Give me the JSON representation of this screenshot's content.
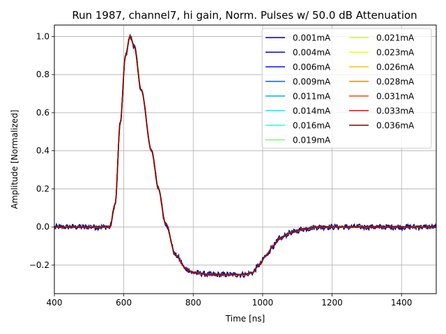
{
  "chart_data": {
    "type": "line",
    "title": "Run 1987, channel7, hi gain, Norm. Pulses w/ 50.0 dB Attenuation",
    "xlabel": "Time [ns]",
    "ylabel": "Amplitude [Normalized]",
    "xlim": [
      400,
      1500
    ],
    "ylim": [
      -0.35,
      1.06
    ],
    "xticks": [
      400,
      600,
      800,
      1000,
      1200,
      1400
    ],
    "yticks": [
      -0.2,
      0.0,
      0.2,
      0.4,
      0.6,
      0.8,
      1.0
    ],
    "ytick_labels": [
      "−0.2",
      "0.0",
      "0.2",
      "0.4",
      "0.6",
      "0.8",
      "1.0"
    ],
    "grid": true,
    "legend_position": "top-right",
    "legend_columns": 2,
    "pulse_shape": {
      "t": [
        400,
        560,
        575,
        590,
        605,
        618,
        630,
        650,
        680,
        700,
        720,
        750,
        780,
        800,
        850,
        900,
        950,
        970,
        990,
        1010,
        1030,
        1050,
        1080,
        1120,
        1160,
        1200,
        1300,
        1400,
        1500
      ],
      "amplitude": [
        0.0,
        0.0,
        0.12,
        0.55,
        0.9,
        1.0,
        0.95,
        0.72,
        0.4,
        0.2,
        0.02,
        -0.15,
        -0.22,
        -0.24,
        -0.25,
        -0.25,
        -0.25,
        -0.24,
        -0.2,
        -0.15,
        -0.1,
        -0.06,
        -0.03,
        -0.01,
        0.0,
        0.0,
        0.0,
        0.0,
        0.0
      ]
    },
    "series": [
      {
        "name": "0.001mA",
        "color": "#00007f",
        "noise": 0.015
      },
      {
        "name": "0.004mA",
        "color": "#0000c8",
        "noise": 0.006
      },
      {
        "name": "0.006mA",
        "color": "#0010ff",
        "noise": 0.004
      },
      {
        "name": "0.009mA",
        "color": "#005cff",
        "noise": 0.003
      },
      {
        "name": "0.011mA",
        "color": "#00a8ff",
        "noise": 0.003
      },
      {
        "name": "0.014mA",
        "color": "#02e8f4",
        "noise": 0.002
      },
      {
        "name": "0.016mA",
        "color": "#33ffc4",
        "noise": 0.002
      },
      {
        "name": "0.019mA",
        "color": "#7bff7b",
        "noise": 0.002
      },
      {
        "name": "0.021mA",
        "color": "#b8ff3e",
        "noise": 0.002
      },
      {
        "name": "0.023mA",
        "color": "#e8ff0e",
        "noise": 0.002
      },
      {
        "name": "0.026mA",
        "color": "#ffc400",
        "noise": 0.002
      },
      {
        "name": "0.028mA",
        "color": "#ff8600",
        "noise": 0.002
      },
      {
        "name": "0.031mA",
        "color": "#ff4800",
        "noise": 0.002
      },
      {
        "name": "0.033mA",
        "color": "#e80000",
        "noise": 0.002
      },
      {
        "name": "0.036mA",
        "color": "#7f0000",
        "noise": 0.002
      }
    ]
  }
}
